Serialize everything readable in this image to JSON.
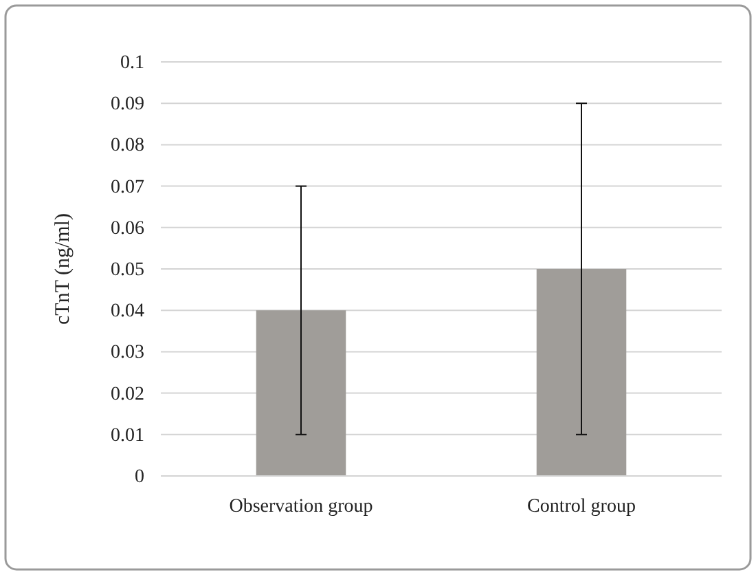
{
  "chart_data": {
    "type": "bar",
    "ylabel": "cTnT (ng/ml)",
    "categories": [
      "Observation group",
      "Control group"
    ],
    "values": [
      0.04,
      0.05
    ],
    "errors": [
      0.03,
      0.04
    ],
    "color": "#a09d99",
    "ylim": [
      0,
      0.1
    ],
    "yticks": [
      0,
      0.01,
      0.02,
      0.03,
      0.04,
      0.05,
      0.06,
      0.07,
      0.08,
      0.09,
      0.1
    ],
    "grid": "y"
  }
}
